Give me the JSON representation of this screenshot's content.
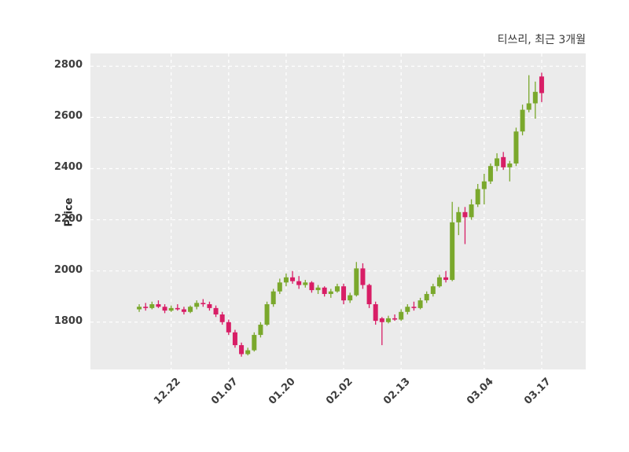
{
  "header": {
    "title": "티쓰리, 최근 3개월"
  },
  "colors": {
    "up": "#7aa82c",
    "down": "#d81e66",
    "plot_bg": "#ebebeb",
    "grid": "#ffffff",
    "text": "#3d3d3d"
  },
  "chart_data": {
    "type": "candlestick",
    "title": "티쓰리, 최근 3개월",
    "xlabel": "",
    "ylabel": "Price",
    "ylim": [
      1615,
      2850
    ],
    "y_ticks": [
      1800,
      2000,
      2200,
      2400,
      2600,
      2800
    ],
    "x_tick_labels": [
      "12.22",
      "01.07",
      "01.20",
      "02.02",
      "02.13",
      "03.04",
      "03.17"
    ],
    "x_tick_indices": [
      5,
      14,
      23,
      32,
      41,
      54,
      63
    ],
    "grid": true,
    "legend": false,
    "candles": [
      {
        "date": "12.15",
        "open": 1850,
        "high": 1870,
        "low": 1840,
        "close": 1860
      },
      {
        "date": "12.16",
        "open": 1860,
        "high": 1875,
        "low": 1845,
        "close": 1855
      },
      {
        "date": "12.17",
        "open": 1855,
        "high": 1880,
        "low": 1850,
        "close": 1870
      },
      {
        "date": "12.18",
        "open": 1870,
        "high": 1885,
        "low": 1855,
        "close": 1860
      },
      {
        "date": "12.19",
        "open": 1860,
        "high": 1870,
        "low": 1835,
        "close": 1845
      },
      {
        "date": "12.22",
        "open": 1845,
        "high": 1865,
        "low": 1840,
        "close": 1855
      },
      {
        "date": "12.23",
        "open": 1855,
        "high": 1870,
        "low": 1845,
        "close": 1850
      },
      {
        "date": "12.24",
        "open": 1850,
        "high": 1860,
        "low": 1830,
        "close": 1840
      },
      {
        "date": "12.26",
        "open": 1840,
        "high": 1865,
        "low": 1835,
        "close": 1860
      },
      {
        "date": "12.29",
        "open": 1860,
        "high": 1885,
        "low": 1850,
        "close": 1875
      },
      {
        "date": "12.30",
        "open": 1875,
        "high": 1890,
        "low": 1860,
        "close": 1870
      },
      {
        "date": "01.02",
        "open": 1870,
        "high": 1880,
        "low": 1845,
        "close": 1855
      },
      {
        "date": "01.05",
        "open": 1855,
        "high": 1865,
        "low": 1820,
        "close": 1830
      },
      {
        "date": "01.06",
        "open": 1830,
        "high": 1840,
        "low": 1790,
        "close": 1800
      },
      {
        "date": "01.07",
        "open": 1800,
        "high": 1810,
        "low": 1750,
        "close": 1760
      },
      {
        "date": "01.08",
        "open": 1760,
        "high": 1770,
        "low": 1700,
        "close": 1710
      },
      {
        "date": "01.09",
        "open": 1710,
        "high": 1720,
        "low": 1665,
        "close": 1675
      },
      {
        "date": "01.12",
        "open": 1675,
        "high": 1700,
        "low": 1670,
        "close": 1690
      },
      {
        "date": "01.13",
        "open": 1690,
        "high": 1760,
        "low": 1685,
        "close": 1750
      },
      {
        "date": "01.14",
        "open": 1750,
        "high": 1800,
        "low": 1740,
        "close": 1790
      },
      {
        "date": "01.15",
        "open": 1790,
        "high": 1880,
        "low": 1785,
        "close": 1870
      },
      {
        "date": "01.16",
        "open": 1870,
        "high": 1930,
        "low": 1860,
        "close": 1920
      },
      {
        "date": "01.19",
        "open": 1920,
        "high": 1970,
        "low": 1910,
        "close": 1955
      },
      {
        "date": "01.20",
        "open": 1955,
        "high": 1990,
        "low": 1940,
        "close": 1975
      },
      {
        "date": "01.21",
        "open": 1975,
        "high": 2000,
        "low": 1950,
        "close": 1960
      },
      {
        "date": "01.22",
        "open": 1960,
        "high": 1980,
        "low": 1930,
        "close": 1945
      },
      {
        "date": "01.23",
        "open": 1945,
        "high": 1965,
        "low": 1935,
        "close": 1955
      },
      {
        "date": "01.26",
        "open": 1955,
        "high": 1960,
        "low": 1915,
        "close": 1925
      },
      {
        "date": "01.27",
        "open": 1925,
        "high": 1945,
        "low": 1910,
        "close": 1935
      },
      {
        "date": "01.28",
        "open": 1935,
        "high": 1940,
        "low": 1900,
        "close": 1910
      },
      {
        "date": "01.29",
        "open": 1910,
        "high": 1930,
        "low": 1895,
        "close": 1920
      },
      {
        "date": "01.30",
        "open": 1920,
        "high": 1950,
        "low": 1915,
        "close": 1940
      },
      {
        "date": "02.02",
        "open": 1940,
        "high": 1950,
        "low": 1870,
        "close": 1885
      },
      {
        "date": "02.03",
        "open": 1885,
        "high": 1915,
        "low": 1875,
        "close": 1905
      },
      {
        "date": "02.04",
        "open": 1905,
        "high": 2035,
        "low": 1900,
        "close": 2010
      },
      {
        "date": "02.05",
        "open": 2010,
        "high": 2030,
        "low": 1930,
        "close": 1945
      },
      {
        "date": "02.06",
        "open": 1945,
        "high": 1950,
        "low": 1855,
        "close": 1870
      },
      {
        "date": "02.09",
        "open": 1870,
        "high": 1880,
        "low": 1790,
        "close": 1805
      },
      {
        "date": "02.10",
        "open": 1815,
        "high": 1820,
        "low": 1710,
        "close": 1800
      },
      {
        "date": "02.11",
        "open": 1800,
        "high": 1825,
        "low": 1795,
        "close": 1815
      },
      {
        "date": "02.12",
        "open": 1815,
        "high": 1830,
        "low": 1805,
        "close": 1810
      },
      {
        "date": "02.13",
        "open": 1810,
        "high": 1850,
        "low": 1805,
        "close": 1840
      },
      {
        "date": "02.16",
        "open": 1840,
        "high": 1870,
        "low": 1830,
        "close": 1860
      },
      {
        "date": "02.17",
        "open": 1860,
        "high": 1880,
        "low": 1845,
        "close": 1855
      },
      {
        "date": "02.18",
        "open": 1855,
        "high": 1895,
        "low": 1850,
        "close": 1885
      },
      {
        "date": "02.19",
        "open": 1885,
        "high": 1920,
        "low": 1875,
        "close": 1910
      },
      {
        "date": "02.20",
        "open": 1910,
        "high": 1950,
        "low": 1900,
        "close": 1940
      },
      {
        "date": "02.23",
        "open": 1940,
        "high": 1985,
        "low": 1935,
        "close": 1975
      },
      {
        "date": "02.24",
        "open": 1975,
        "high": 2000,
        "low": 1955,
        "close": 1965
      },
      {
        "date": "02.25",
        "open": 1965,
        "high": 2270,
        "low": 1960,
        "close": 2190
      },
      {
        "date": "02.26",
        "open": 2190,
        "high": 2250,
        "low": 2140,
        "close": 2230
      },
      {
        "date": "02.27",
        "open": 2230,
        "high": 2250,
        "low": 2105,
        "close": 2210
      },
      {
        "date": "03.02",
        "open": 2210,
        "high": 2280,
        "low": 2200,
        "close": 2260
      },
      {
        "date": "03.03",
        "open": 2260,
        "high": 2340,
        "low": 2250,
        "close": 2320
      },
      {
        "date": "03.04",
        "open": 2320,
        "high": 2380,
        "low": 2260,
        "close": 2350
      },
      {
        "date": "03.05",
        "open": 2350,
        "high": 2420,
        "low": 2340,
        "close": 2410
      },
      {
        "date": "03.06",
        "open": 2410,
        "high": 2460,
        "low": 2390,
        "close": 2440
      },
      {
        "date": "03.09",
        "open": 2445,
        "high": 2465,
        "low": 2395,
        "close": 2405
      },
      {
        "date": "03.10",
        "open": 2405,
        "high": 2430,
        "low": 2350,
        "close": 2420
      },
      {
        "date": "03.11",
        "open": 2420,
        "high": 2560,
        "low": 2410,
        "close": 2545
      },
      {
        "date": "03.12",
        "open": 2545,
        "high": 2650,
        "low": 2530,
        "close": 2630
      },
      {
        "date": "03.13",
        "open": 2630,
        "high": 2765,
        "low": 2620,
        "close": 2655
      },
      {
        "date": "03.16",
        "open": 2655,
        "high": 2740,
        "low": 2595,
        "close": 2700
      },
      {
        "date": "03.17",
        "open": 2760,
        "high": 2775,
        "low": 2660,
        "close": 2695
      }
    ]
  }
}
